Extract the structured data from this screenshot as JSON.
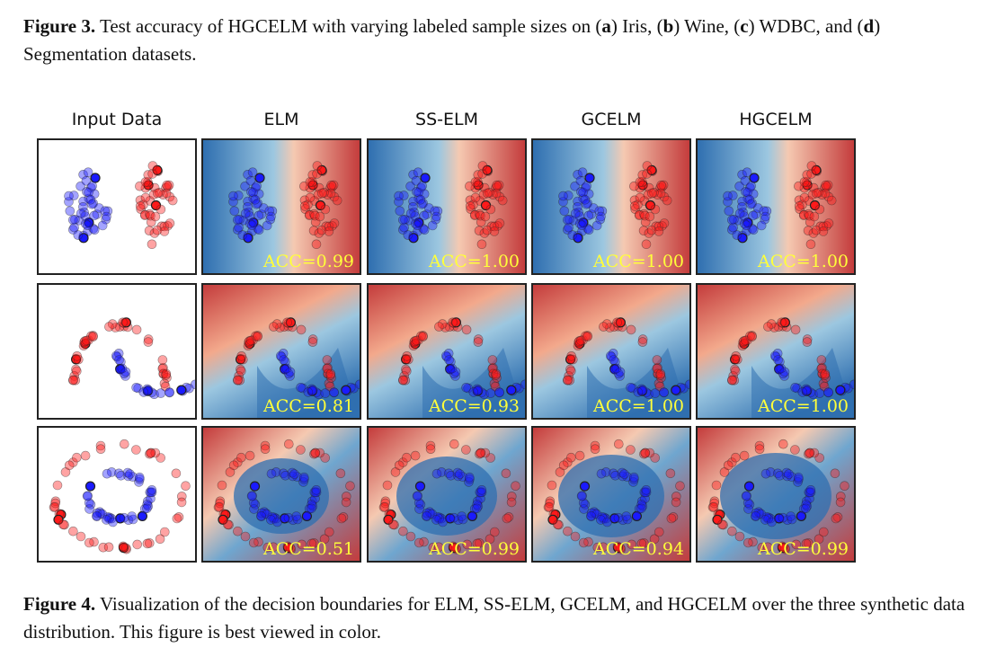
{
  "figure3_caption": {
    "label": "Figure 3.",
    "text_parts": [
      " Test accuracy of HGCELM with varying labeled sample sizes on (",
      "a",
      ") Iris, (",
      "b",
      ") Wine, (",
      "c",
      ") WDBC, and (",
      "d",
      ") Segmentation datasets."
    ]
  },
  "columns": [
    "Input Data",
    "ELM",
    "SS-ELM",
    "GCELM",
    "HGCELM"
  ],
  "rows": [
    {
      "dataset": "blobs",
      "acc": [
        "ACC=0.99",
        "ACC=1.00",
        "ACC=1.00",
        "ACC=1.00"
      ]
    },
    {
      "dataset": "moons",
      "acc": [
        "ACC=0.81",
        "ACC=0.93",
        "ACC=1.00",
        "ACC=1.00"
      ]
    },
    {
      "dataset": "circles",
      "acc": [
        "ACC=0.51",
        "ACC=0.99",
        "ACC=0.94",
        "ACC=0.99"
      ]
    }
  ],
  "colors": {
    "class_blue": "#1a1aff",
    "class_red": "#ff1a1a",
    "region_red": "#b2182b",
    "region_blue": "#2166ac",
    "acc_text": "#ffff3a"
  },
  "figure4_caption": {
    "label": "Figure 4.",
    "text": " Visualization of the decision boundaries for ELM, SS-ELM, GCELM, and HGCELM over the three synthetic data distribution. This figure is best viewed in color."
  }
}
